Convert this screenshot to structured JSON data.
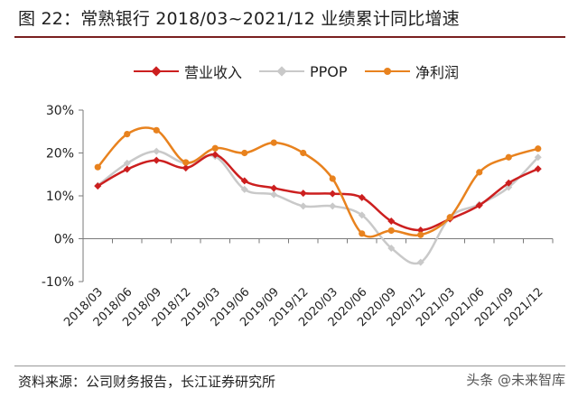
{
  "title": "图 22：常熟银行 2018/03~2021/12 业绩累计同比增速",
  "source": "资料来源：公司财务报告，长江证券研究所",
  "watermark": "头条 @未来智库",
  "colors": {
    "revenue": "#cc1f1f",
    "ppop": "#c9c9c9",
    "net_profit": "#e8821e",
    "axis": "#7a7a7a",
    "title_rule": "#7a1f1f"
  },
  "chart_data": {
    "type": "line",
    "title": "常熟银行 2018/03~2021/12 业绩累计同比增速",
    "xlabel": "",
    "ylabel": "",
    "ylim": [
      -10,
      30
    ],
    "yticks": [
      "-10%",
      "0%",
      "10%",
      "20%",
      "30%"
    ],
    "ytick_values": [
      -10,
      0,
      10,
      20,
      30
    ],
    "grid": false,
    "legend": "top",
    "smooth": true,
    "categories": [
      "2018/03",
      "2018/06",
      "2018/09",
      "2018/12",
      "2019/03",
      "2019/06",
      "2019/09",
      "2019/12",
      "2020/03",
      "2020/06",
      "2020/09",
      "2020/12",
      "2021/03",
      "2021/06",
      "2021/09",
      "2021/12"
    ],
    "series": [
      {
        "name": "营业收入",
        "color": "#cc1f1f",
        "marker": "diamond",
        "values": [
          12.3,
          16.2,
          18.3,
          16.5,
          19.6,
          13.5,
          11.8,
          10.6,
          10.5,
          9.6,
          4.1,
          2.0,
          4.6,
          7.8,
          13.0,
          16.3
        ]
      },
      {
        "name": "PPOP",
        "color": "#c9c9c9",
        "marker": "diamond",
        "values": [
          12.4,
          17.6,
          20.4,
          17.6,
          19.2,
          11.5,
          10.3,
          7.6,
          7.6,
          5.5,
          -2.2,
          -5.5,
          5.0,
          8.0,
          12.0,
          19.0
        ]
      },
      {
        "name": "净利润",
        "color": "#e8821e",
        "marker": "circle",
        "values": [
          16.7,
          24.4,
          25.3,
          17.8,
          21.1,
          20.0,
          22.4,
          20.0,
          14.0,
          1.2,
          1.9,
          0.9,
          5.0,
          15.5,
          19.0,
          21.0
        ]
      }
    ]
  }
}
